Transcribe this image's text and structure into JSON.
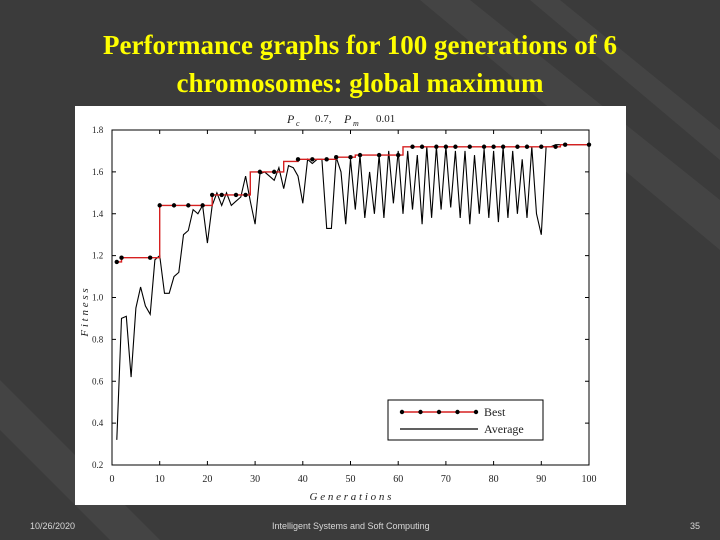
{
  "slide": {
    "title_line1": "Performance graphs for 100 generations of 6",
    "title_line2": "chromosomes: global maximum",
    "footer_date": "10/26/2020",
    "footer_center": "Intelligent Systems and Soft Computing",
    "footer_page": "35",
    "colors": {
      "background": "#3b3b3b",
      "title": "#ffff00",
      "best": "#d62020",
      "average": "#000000"
    }
  },
  "chart_data": {
    "type": "line",
    "params": {
      "pc_label": "P",
      "pc_sub": "c",
      "pc_value": "0.7,",
      "pm_label": "P",
      "pm_sub": "m",
      "pm_value": "0.01"
    },
    "xlabel": "G e n e r a t i o n s",
    "ylabel": "F i t n e s s",
    "xlim": [
      0,
      100
    ],
    "ylim": [
      0.2,
      1.8
    ],
    "xticks": [
      "0",
      "10",
      "20",
      "30",
      "40",
      "50",
      "60",
      "70",
      "80",
      "90",
      "100"
    ],
    "yticks": [
      "0.2",
      "0.4",
      "0.6",
      "0.8",
      "1.0",
      "1.2",
      "1.4",
      "1.6",
      "1.8"
    ],
    "legend": {
      "position": "bottom-right",
      "entries": [
        "Best",
        "Average"
      ]
    },
    "series": [
      {
        "name": "Best",
        "style": "red-with-markers",
        "x": [
          1,
          2,
          3,
          4,
          5,
          6,
          7,
          8,
          9,
          10,
          11,
          12,
          13,
          14,
          15,
          16,
          17,
          18,
          19,
          20,
          21,
          22,
          23,
          24,
          25,
          26,
          27,
          28,
          29,
          30,
          31,
          32,
          33,
          34,
          35,
          36,
          37,
          38,
          39,
          40,
          41,
          42,
          43,
          44,
          45,
          46,
          47,
          48,
          49,
          50,
          51,
          52,
          53,
          54,
          55,
          56,
          57,
          58,
          59,
          60,
          61,
          62,
          63,
          64,
          65,
          66,
          67,
          68,
          69,
          70,
          71,
          72,
          73,
          74,
          75,
          76,
          77,
          78,
          79,
          80,
          81,
          82,
          83,
          84,
          85,
          86,
          87,
          88,
          89,
          90,
          91,
          92,
          93,
          94,
          95,
          96,
          97,
          98,
          99,
          100
        ],
        "values": [
          1.17,
          1.19,
          1.19,
          1.19,
          1.19,
          1.19,
          1.19,
          1.19,
          1.19,
          1.44,
          1.44,
          1.44,
          1.44,
          1.44,
          1.44,
          1.44,
          1.44,
          1.44,
          1.44,
          1.44,
          1.49,
          1.49,
          1.49,
          1.49,
          1.49,
          1.49,
          1.49,
          1.49,
          1.6,
          1.6,
          1.6,
          1.6,
          1.6,
          1.6,
          1.6,
          1.65,
          1.65,
          1.65,
          1.66,
          1.66,
          1.66,
          1.66,
          1.66,
          1.66,
          1.66,
          1.66,
          1.67,
          1.67,
          1.67,
          1.67,
          1.68,
          1.68,
          1.68,
          1.68,
          1.68,
          1.68,
          1.68,
          1.68,
          1.68,
          1.68,
          1.72,
          1.72,
          1.72,
          1.72,
          1.72,
          1.72,
          1.72,
          1.72,
          1.72,
          1.72,
          1.72,
          1.72,
          1.72,
          1.72,
          1.72,
          1.72,
          1.72,
          1.72,
          1.72,
          1.72,
          1.72,
          1.72,
          1.72,
          1.72,
          1.72,
          1.72,
          1.72,
          1.72,
          1.72,
          1.72,
          1.72,
          1.72,
          1.72,
          1.73,
          1.73,
          1.73,
          1.73,
          1.73,
          1.73,
          1.73
        ],
        "markers_x": [
          1,
          2,
          8,
          10,
          13,
          16,
          19,
          21,
          23,
          26,
          28,
          31,
          34,
          39,
          42,
          45,
          47,
          50,
          52,
          56,
          60,
          63,
          65,
          68,
          70,
          72,
          75,
          78,
          80,
          82,
          85,
          87,
          90,
          93,
          95,
          100
        ]
      },
      {
        "name": "Average",
        "style": "black",
        "x": [
          1,
          2,
          3,
          4,
          5,
          6,
          7,
          8,
          9,
          10,
          11,
          12,
          13,
          14,
          15,
          16,
          17,
          18,
          19,
          20,
          21,
          22,
          23,
          24,
          25,
          26,
          27,
          28,
          29,
          30,
          31,
          32,
          33,
          34,
          35,
          36,
          37,
          38,
          39,
          40,
          41,
          42,
          43,
          44,
          45,
          46,
          47,
          48,
          49,
          50,
          51,
          52,
          53,
          54,
          55,
          56,
          57,
          58,
          59,
          60,
          61,
          62,
          63,
          64,
          65,
          66,
          67,
          68,
          69,
          70,
          71,
          72,
          73,
          74,
          75,
          76,
          77,
          78,
          79,
          80,
          81,
          82,
          83,
          84,
          85,
          86,
          87,
          88,
          89,
          90,
          91,
          92,
          93,
          94,
          95,
          96,
          97,
          98,
          99,
          100
        ],
        "values": [
          0.32,
          0.9,
          0.91,
          0.62,
          0.95,
          1.05,
          0.96,
          0.92,
          1.18,
          1.2,
          1.02,
          1.02,
          1.1,
          1.12,
          1.3,
          1.32,
          1.42,
          1.4,
          1.44,
          1.26,
          1.44,
          1.5,
          1.44,
          1.5,
          1.44,
          1.46,
          1.48,
          1.58,
          1.46,
          1.35,
          1.59,
          1.6,
          1.58,
          1.56,
          1.62,
          1.52,
          1.63,
          1.62,
          1.58,
          1.45,
          1.66,
          1.64,
          1.66,
          1.66,
          1.33,
          1.33,
          1.67,
          1.6,
          1.35,
          1.66,
          1.42,
          1.68,
          1.38,
          1.6,
          1.4,
          1.68,
          1.38,
          1.7,
          1.45,
          1.7,
          1.4,
          1.7,
          1.42,
          1.68,
          1.35,
          1.72,
          1.38,
          1.72,
          1.42,
          1.72,
          1.43,
          1.7,
          1.38,
          1.7,
          1.35,
          1.68,
          1.4,
          1.71,
          1.38,
          1.7,
          1.36,
          1.72,
          1.38,
          1.7,
          1.4,
          1.66,
          1.38,
          1.72,
          1.4,
          1.3,
          1.72,
          1.72,
          1.73,
          1.73,
          1.73,
          1.73,
          1.73,
          1.73,
          1.73,
          1.73
        ]
      }
    ]
  }
}
